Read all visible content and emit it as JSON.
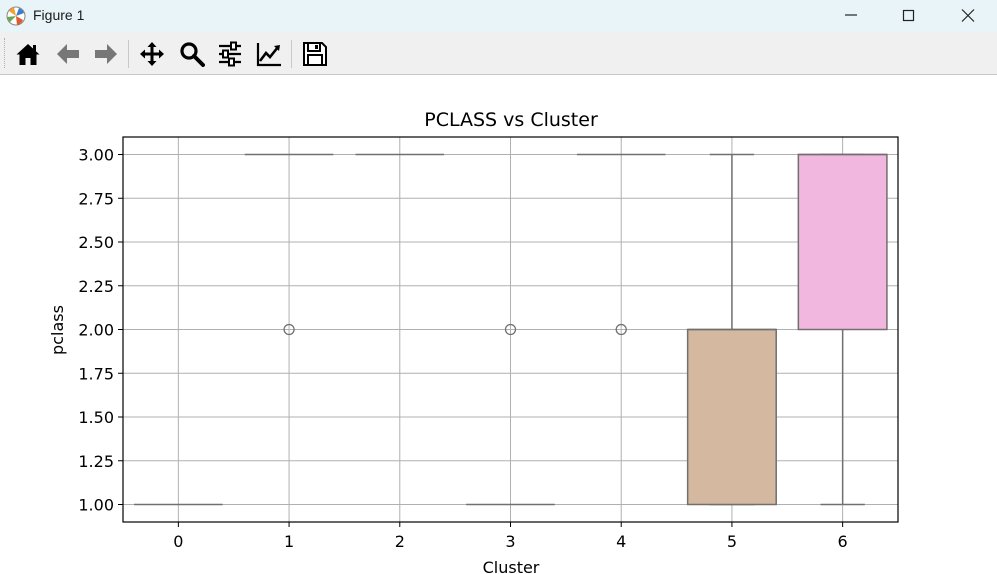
{
  "window": {
    "title": "Figure 1",
    "controls": [
      "minimize",
      "maximize",
      "close"
    ]
  },
  "toolbar": {
    "buttons": [
      {
        "name": "home",
        "icon": "home-icon"
      },
      {
        "name": "back",
        "icon": "arrow-left-icon"
      },
      {
        "name": "forward",
        "icon": "arrow-right-icon"
      },
      {
        "name": "pan",
        "icon": "move-icon"
      },
      {
        "name": "zoom",
        "icon": "magnifier-icon"
      },
      {
        "name": "subplots",
        "icon": "sliders-icon"
      },
      {
        "name": "customize",
        "icon": "chart-line-icon"
      },
      {
        "name": "save",
        "icon": "floppy-disk-icon"
      }
    ]
  },
  "chart_data": {
    "type": "box",
    "title": "PCLASS vs Cluster",
    "xlabel": "Cluster",
    "ylabel": "pclass",
    "categories": [
      "0",
      "1",
      "2",
      "3",
      "4",
      "5",
      "6"
    ],
    "ylim": [
      0.9,
      3.1
    ],
    "yticks": [
      1.0,
      1.25,
      1.5,
      1.75,
      2.0,
      2.25,
      2.5,
      2.75,
      3.0
    ],
    "ytick_labels": [
      "1.00",
      "1.25",
      "1.50",
      "1.75",
      "2.00",
      "2.25",
      "2.50",
      "2.75",
      "3.00"
    ],
    "grid": true,
    "boxes": [
      {
        "category": "0",
        "q1": 1,
        "median": 1,
        "q3": 1,
        "whisker_low": 1,
        "whisker_high": 1,
        "fliers": [],
        "color": "#1f77b4"
      },
      {
        "category": "1",
        "q1": 3,
        "median": 3,
        "q3": 3,
        "whisker_low": 3,
        "whisker_high": 3,
        "fliers": [
          2
        ],
        "color": "#ff7f0e"
      },
      {
        "category": "2",
        "q1": 3,
        "median": 3,
        "q3": 3,
        "whisker_low": 3,
        "whisker_high": 3,
        "fliers": [],
        "color": "#2ca02c"
      },
      {
        "category": "3",
        "q1": 1,
        "median": 1,
        "q3": 1,
        "whisker_low": 1,
        "whisker_high": 1,
        "fliers": [
          2
        ],
        "color": "#d62728"
      },
      {
        "category": "4",
        "q1": 3,
        "median": 3,
        "q3": 3,
        "whisker_low": 3,
        "whisker_high": 3,
        "fliers": [
          2
        ],
        "color": "#9467bd"
      },
      {
        "category": "5",
        "q1": 1,
        "median": 2,
        "q3": 2,
        "whisker_low": 1,
        "whisker_high": 3,
        "fliers": [],
        "color": "#d4b8a0"
      },
      {
        "category": "6",
        "q1": 2,
        "median": 3,
        "q3": 3,
        "whisker_low": 1,
        "whisker_high": 3,
        "fliers": [],
        "color": "#f2b7de"
      }
    ]
  }
}
